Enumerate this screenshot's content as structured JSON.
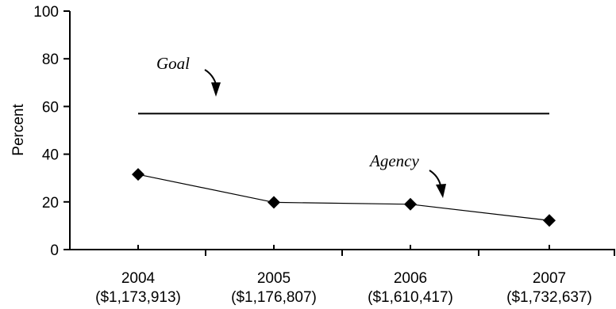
{
  "chart_data": {
    "type": "line",
    "title": "",
    "xlabel": "",
    "ylabel": "Percent",
    "ylim": [
      0,
      100
    ],
    "yticks": [
      0,
      20,
      40,
      60,
      80,
      100
    ],
    "categories": [
      {
        "year": "2004",
        "amount": "($1,173,913)"
      },
      {
        "year": "2005",
        "amount": "($1,176,807)"
      },
      {
        "year": "2006",
        "amount": "($1,610,417)"
      },
      {
        "year": "2007",
        "amount": "($1,732,637)"
      }
    ],
    "series": [
      {
        "name": "Agency",
        "values": [
          31.5,
          19.8,
          19.0,
          12.2
        ],
        "marker": "diamond",
        "color": "#000000"
      },
      {
        "name": "Goal",
        "values": [
          57,
          57,
          57,
          57
        ],
        "color": "#000000"
      }
    ],
    "annotations": [
      {
        "text": "Goal",
        "series": "Goal"
      },
      {
        "text": "Agency",
        "series": "Agency"
      }
    ],
    "grid": false
  }
}
